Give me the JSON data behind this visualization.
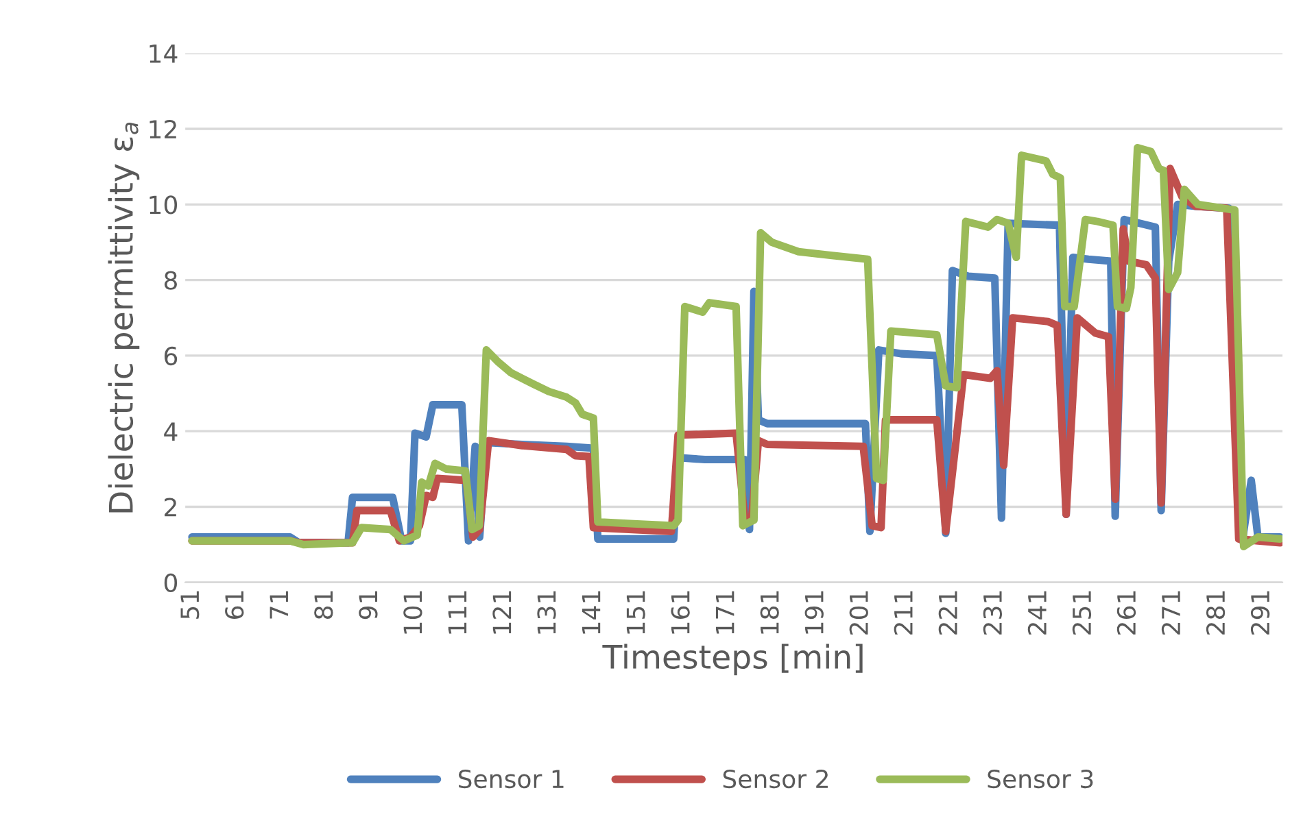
{
  "chart_data": {
    "type": "line",
    "xlabel": "Timesteps [min]",
    "ylabel": "Dielectric permittivity ε$_{a}$",
    "xlim": [
      49.5,
      295.5
    ],
    "xticks": [
      51,
      61,
      71,
      81,
      91,
      101,
      111,
      121,
      131,
      141,
      151,
      161,
      171,
      181,
      191,
      201,
      211,
      221,
      231,
      241,
      251,
      261,
      271,
      281,
      291
    ],
    "ylim": [
      0,
      14
    ],
    "yticks": [
      0,
      2,
      4,
      6,
      8,
      10,
      12,
      14
    ],
    "grid": "y",
    "legend": "bottom",
    "marker": "none",
    "line_style": "solid",
    "series": [
      {
        "name": "Sensor 1",
        "color": "#4f81bd",
        "x": [
          51,
          73,
          75,
          86,
          87,
          96,
          98,
          100,
          101,
          103.5,
          105,
          111.5,
          113,
          114.5,
          115.5,
          117,
          125,
          135,
          141,
          142,
          159,
          160,
          166,
          175,
          176,
          177,
          178,
          180,
          202,
          203,
          205,
          210,
          218,
          220,
          221.5,
          225,
          231,
          232.5,
          234,
          245.5,
          247,
          248.5,
          252,
          257,
          258,
          260,
          267,
          268.3,
          270,
          272,
          276,
          283.5,
          286.5,
          288.5,
          290,
          295
        ],
        "values": [
          1.2,
          1.2,
          1.05,
          1.05,
          2.25,
          2.25,
          1.1,
          1.1,
          3.95,
          3.85,
          4.7,
          4.7,
          1.1,
          3.6,
          1.2,
          3.7,
          3.65,
          3.6,
          3.55,
          1.15,
          1.15,
          3.3,
          3.25,
          3.25,
          1.4,
          7.7,
          4.3,
          4.2,
          4.2,
          1.35,
          6.15,
          6.05,
          6.0,
          1.3,
          8.25,
          8.1,
          8.05,
          1.7,
          9.5,
          9.45,
          1.8,
          8.6,
          8.55,
          8.5,
          1.75,
          9.6,
          9.4,
          1.9,
          8.5,
          10.0,
          9.95,
          9.9,
          1.1,
          2.7,
          1.2,
          1.2
        ]
      },
      {
        "name": "Sensor 2",
        "color": "#c0504d",
        "x": [
          51,
          73,
          75,
          87,
          88,
          95.5,
          97.5,
          100,
          102,
          103.5,
          105,
          106,
          112.5,
          114,
          115.5,
          117.5,
          125,
          135,
          137,
          140,
          141,
          158.5,
          160,
          166,
          173,
          175,
          176.5,
          178,
          180,
          201.5,
          203.5,
          205.5,
          206.5,
          218,
          220,
          224,
          230,
          231.5,
          233,
          235,
          243,
          245,
          247,
          249.5,
          253.5,
          256.5,
          258,
          259.8,
          261,
          265,
          267,
          268.3,
          270.3,
          273,
          276,
          283,
          285.7,
          290,
          295
        ],
        "values": [
          1.1,
          1.1,
          1.05,
          1.05,
          1.9,
          1.9,
          1.1,
          1.2,
          1.5,
          2.3,
          2.25,
          2.75,
          2.7,
          1.2,
          1.4,
          3.75,
          3.62,
          3.52,
          3.35,
          3.33,
          1.45,
          1.35,
          3.9,
          3.92,
          3.95,
          1.6,
          1.7,
          3.75,
          3.65,
          3.6,
          1.5,
          1.45,
          4.3,
          4.3,
          1.35,
          5.5,
          5.4,
          5.6,
          3.1,
          7.0,
          6.9,
          6.8,
          1.8,
          7.0,
          6.6,
          6.5,
          2.2,
          9.35,
          8.5,
          8.4,
          8.05,
          2.1,
          10.95,
          10.2,
          9.95,
          9.9,
          1.15,
          1.1,
          1.05
        ]
      },
      {
        "name": "Sensor 3",
        "color": "#9bbb59",
        "x": [
          51,
          73,
          76,
          87,
          89,
          95.5,
          98.5,
          101.5,
          102.5,
          104,
          105.5,
          108,
          112.3,
          113.8,
          115.4,
          117,
          119.5,
          122.5,
          127.5,
          131,
          135,
          137,
          138.5,
          141,
          142,
          150,
          159,
          160,
          161.5,
          165.5,
          167,
          173,
          174.5,
          177,
          178.5,
          181,
          187,
          194.5,
          202.5,
          204.5,
          206,
          207.7,
          218,
          220,
          222.5,
          224.5,
          229.5,
          231.5,
          234,
          235.8,
          237,
          242.5,
          244,
          245.7,
          246.7,
          248.8,
          251.3,
          254,
          257.5,
          258.5,
          260.5,
          261.5,
          263,
          266,
          267.8,
          268.8,
          270,
          272,
          273.5,
          276.5,
          284.8,
          286.8,
          290,
          295
        ],
        "values": [
          1.1,
          1.1,
          1.0,
          1.05,
          1.45,
          1.4,
          1.1,
          1.25,
          2.65,
          2.55,
          3.15,
          3.0,
          2.95,
          1.4,
          1.5,
          6.15,
          5.85,
          5.55,
          5.25,
          5.05,
          4.9,
          4.75,
          4.45,
          4.35,
          1.6,
          1.55,
          1.5,
          1.65,
          7.3,
          7.15,
          7.4,
          7.3,
          1.5,
          1.65,
          9.25,
          9.0,
          8.75,
          8.65,
          8.55,
          2.75,
          2.7,
          6.65,
          6.55,
          5.2,
          5.15,
          9.55,
          9.4,
          9.6,
          9.5,
          8.6,
          11.3,
          11.15,
          10.8,
          10.7,
          7.3,
          7.3,
          9.6,
          9.55,
          9.45,
          7.3,
          7.25,
          7.8,
          11.5,
          11.4,
          10.95,
          10.9,
          7.75,
          8.2,
          10.4,
          10.0,
          9.85,
          0.95,
          1.2,
          1.15
        ]
      }
    ]
  }
}
